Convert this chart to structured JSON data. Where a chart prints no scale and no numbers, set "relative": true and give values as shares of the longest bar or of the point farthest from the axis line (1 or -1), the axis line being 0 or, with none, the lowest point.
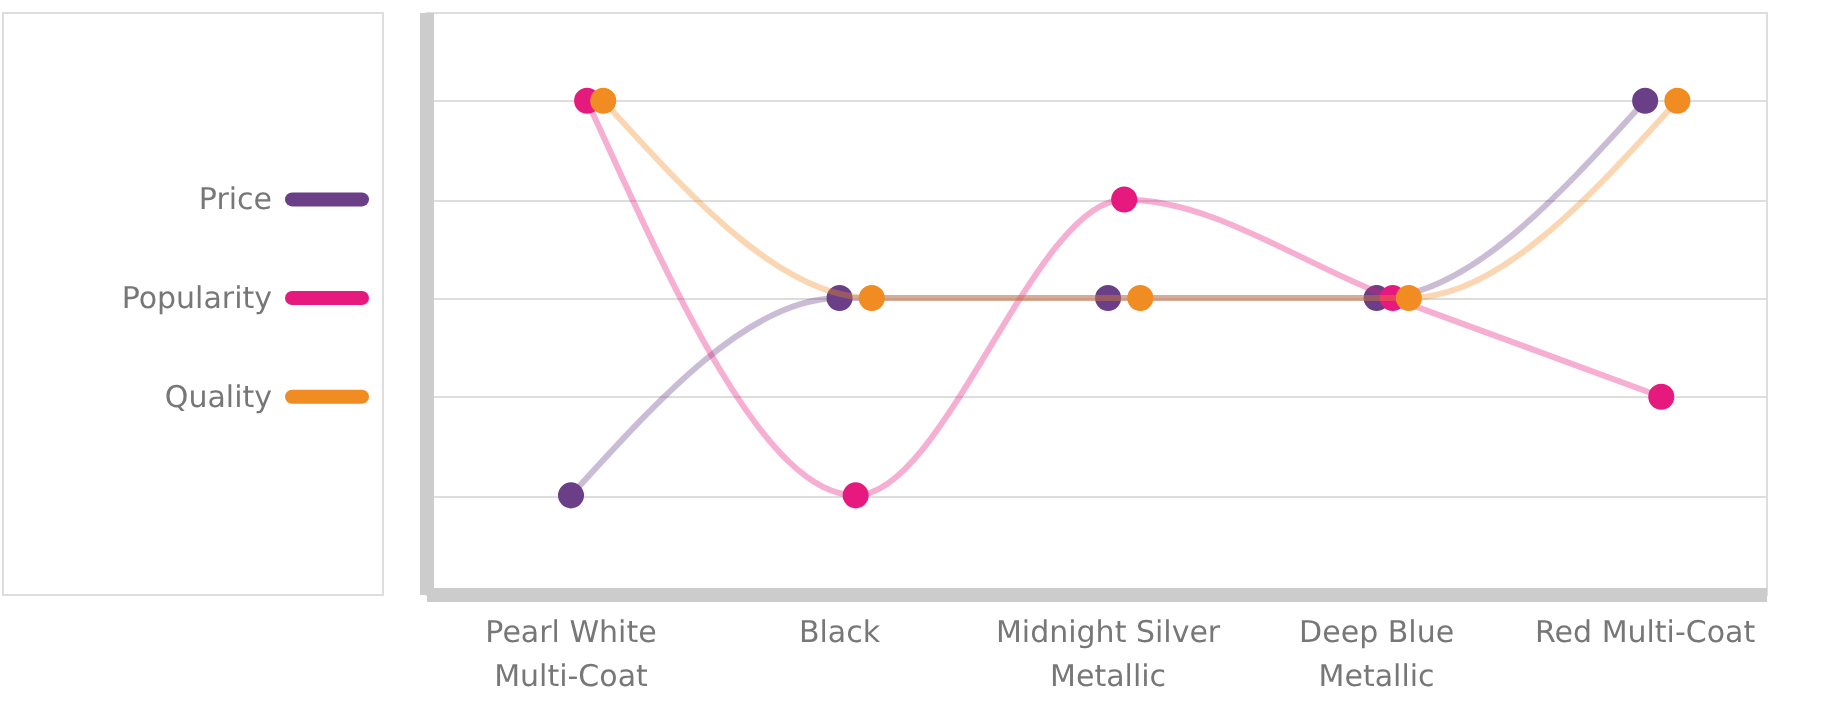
{
  "chart_data": {
    "type": "line",
    "relative": true,
    "grid": "y",
    "legend": "left",
    "marker": "circle",
    "line_style": "solid",
    "categories": [
      "Pearl White Multi-Coat",
      "Black",
      "Midnight Silver Metallic",
      "Deep Blue Metallic",
      "Red Multi-Coat"
    ],
    "series": [
      {
        "name": "Price",
        "color": "#6b3f87",
        "values": [
          0.2,
          0.6,
          0.6,
          0.6,
          1
        ]
      },
      {
        "name": "Popularity",
        "color": "#e5197e",
        "values": [
          1,
          0.2,
          0.8,
          0.6,
          0.4
        ]
      },
      {
        "name": "Quality",
        "color": "#f08c21",
        "values": [
          1,
          0.6,
          0.6,
          0.6,
          1
        ]
      }
    ]
  }
}
